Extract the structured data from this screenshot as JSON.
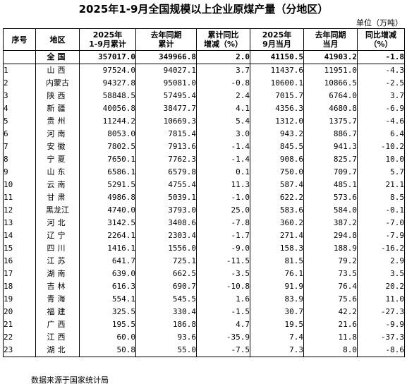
{
  "title": "2025年1-9月全国规模以上企业原煤产量（分地区）",
  "unit": "单位（万吨）",
  "headers": {
    "seq": "序号",
    "region": "地区",
    "ytd_line1": "2025年",
    "ytd_line2": "1-9月累计",
    "ytd_prev_line1": "去年同期",
    "ytd_prev_line2": "累计",
    "ytd_yoy_line1": "累计同比",
    "ytd_yoy_line2": "增减（%）",
    "month_line1": "2025年",
    "month_line2": "9月当月",
    "month_prev_line1": "去年同期",
    "month_prev_line2": "当月",
    "month_yoy_line1": "同比增减",
    "month_yoy_line2": "（%）"
  },
  "total": {
    "seq": "",
    "region": "全国",
    "ytd": "357017.0",
    "ytd_prev": "349966.8",
    "ytd_yoy": "2.0",
    "month": "41150.5",
    "month_prev": "41903.2",
    "month_yoy": "-1.8"
  },
  "rows": [
    {
      "seq": "1",
      "region": "山西",
      "ytd": "97524.0",
      "ytd_prev": "94027.1",
      "ytd_yoy": "3.7",
      "month": "11437.6",
      "month_prev": "11951.0",
      "month_yoy": "-4.3"
    },
    {
      "seq": "2",
      "region": "内蒙古",
      "ytd": "94327.8",
      "ytd_prev": "95081.0",
      "ytd_yoy": "-0.8",
      "month": "10600.1",
      "month_prev": "10866.5",
      "month_yoy": "-2.5"
    },
    {
      "seq": "3",
      "region": "陕西",
      "ytd": "58848.5",
      "ytd_prev": "57495.4",
      "ytd_yoy": "2.4",
      "month": "7015.7",
      "month_prev": "6764.0",
      "month_yoy": "3.7"
    },
    {
      "seq": "4",
      "region": "新疆",
      "ytd": "40056.8",
      "ytd_prev": "38477.7",
      "ytd_yoy": "4.1",
      "month": "4356.3",
      "month_prev": "4680.8",
      "month_yoy": "-6.9"
    },
    {
      "seq": "5",
      "region": "贵州",
      "ytd": "11244.2",
      "ytd_prev": "10669.3",
      "ytd_yoy": "5.4",
      "month": "1312.0",
      "month_prev": "1375.7",
      "month_yoy": "-4.6"
    },
    {
      "seq": "6",
      "region": "河南",
      "ytd": "8053.0",
      "ytd_prev": "7815.4",
      "ytd_yoy": "3.0",
      "month": "943.2",
      "month_prev": "886.7",
      "month_yoy": "6.4"
    },
    {
      "seq": "7",
      "region": "安徽",
      "ytd": "7802.5",
      "ytd_prev": "7913.6",
      "ytd_yoy": "-1.4",
      "month": "845.5",
      "month_prev": "941.3",
      "month_yoy": "-10.2"
    },
    {
      "seq": "8",
      "region": "宁夏",
      "ytd": "7650.1",
      "ytd_prev": "7762.3",
      "ytd_yoy": "-1.4",
      "month": "908.6",
      "month_prev": "825.7",
      "month_yoy": "10.0"
    },
    {
      "seq": "9",
      "region": "山东",
      "ytd": "6586.1",
      "ytd_prev": "6579.8",
      "ytd_yoy": "0.1",
      "month": "750.0",
      "month_prev": "709.7",
      "month_yoy": "5.7"
    },
    {
      "seq": "10",
      "region": "云南",
      "ytd": "5291.5",
      "ytd_prev": "4755.4",
      "ytd_yoy": "11.3",
      "month": "587.4",
      "month_prev": "485.1",
      "month_yoy": "21.1"
    },
    {
      "seq": "11",
      "region": "甘肃",
      "ytd": "4986.8",
      "ytd_prev": "5039.1",
      "ytd_yoy": "-1.0",
      "month": "622.2",
      "month_prev": "573.6",
      "month_yoy": "8.5"
    },
    {
      "seq": "12",
      "region": "黑龙江",
      "ytd": "4740.0",
      "ytd_prev": "3793.0",
      "ytd_yoy": "25.0",
      "month": "583.6",
      "month_prev": "584.0",
      "month_yoy": "-0.1"
    },
    {
      "seq": "13",
      "region": "河北",
      "ytd": "3142.5",
      "ytd_prev": "3408.6",
      "ytd_yoy": "-7.8",
      "month": "360.2",
      "month_prev": "387.2",
      "month_yoy": "-7.0"
    },
    {
      "seq": "14",
      "region": "辽宁",
      "ytd": "2264.1",
      "ytd_prev": "2303.4",
      "ytd_yoy": "-1.7",
      "month": "271.4",
      "month_prev": "294.8",
      "month_yoy": "-7.9"
    },
    {
      "seq": "15",
      "region": "四川",
      "ytd": "1416.1",
      "ytd_prev": "1556.0",
      "ytd_yoy": "-9.0",
      "month": "158.3",
      "month_prev": "188.9",
      "month_yoy": "-16.2"
    },
    {
      "seq": "16",
      "region": "江苏",
      "ytd": "641.7",
      "ytd_prev": "725.1",
      "ytd_yoy": "-11.5",
      "month": "81.5",
      "month_prev": "79.2",
      "month_yoy": "2.9"
    },
    {
      "seq": "17",
      "region": "湖南",
      "ytd": "639.0",
      "ytd_prev": "662.5",
      "ytd_yoy": "-3.5",
      "month": "76.1",
      "month_prev": "73.5",
      "month_yoy": "3.5"
    },
    {
      "seq": "18",
      "region": "吉林",
      "ytd": "616.3",
      "ytd_prev": "690.7",
      "ytd_yoy": "-10.8",
      "month": "91.9",
      "month_prev": "76.4",
      "month_yoy": "20.2"
    },
    {
      "seq": "19",
      "region": "青海",
      "ytd": "554.1",
      "ytd_prev": "545.5",
      "ytd_yoy": "1.6",
      "month": "83.9",
      "month_prev": "75.6",
      "month_yoy": "11.0"
    },
    {
      "seq": "20",
      "region": "福建",
      "ytd": "325.5",
      "ytd_prev": "330.4",
      "ytd_yoy": "-1.5",
      "month": "30.7",
      "month_prev": "42.2",
      "month_yoy": "-27.3"
    },
    {
      "seq": "21",
      "region": "广西",
      "ytd": "195.5",
      "ytd_prev": "186.8",
      "ytd_yoy": "4.7",
      "month": "19.5",
      "month_prev": "21.6",
      "month_yoy": "-9.9"
    },
    {
      "seq": "22",
      "region": "江西",
      "ytd": "60.0",
      "ytd_prev": "93.6",
      "ytd_yoy": "-35.9",
      "month": "7.4",
      "month_prev": "11.8",
      "month_yoy": "-37.3"
    },
    {
      "seq": "23",
      "region": "湖北",
      "ytd": "50.8",
      "ytd_prev": "55.0",
      "ytd_yoy": "-7.5",
      "month": "7.3",
      "month_prev": "8.0",
      "month_yoy": "-8.6"
    }
  ],
  "source": "数据来源于国家统计局"
}
